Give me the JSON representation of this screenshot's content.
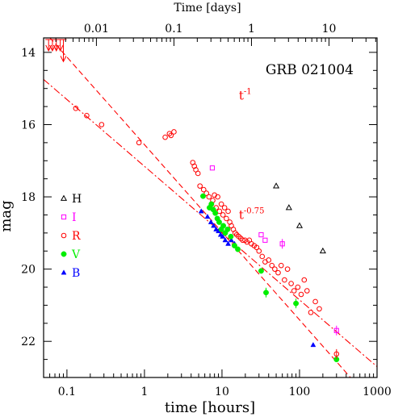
{
  "chart_data": {
    "type": "scatter",
    "title": "GRB 021004",
    "xlabel": "time [hours]",
    "ylabel": "mag",
    "top_xlabel": "Time [days]",
    "xscale": "log",
    "xlim": [
      0.05,
      1000
    ],
    "ylim": [
      13.6,
      23.0
    ],
    "y_inverted": true,
    "top_xscale": "log",
    "top_xlim_days": [
      0.0020833,
      41.667
    ],
    "x_ticks": [
      "0.1",
      "1",
      "10",
      "100",
      "1000"
    ],
    "y_ticks": [
      "14",
      "16",
      "18",
      "20",
      "22"
    ],
    "top_ticks": [
      "0.01",
      "0.1",
      "1",
      "10"
    ],
    "legend_position": "left",
    "legend": [
      {
        "label": "H",
        "marker": "triangle-open",
        "color": "#000000"
      },
      {
        "label": "I",
        "marker": "square-open",
        "color": "#ff00ff"
      },
      {
        "label": "R",
        "marker": "circle-open",
        "color": "#ff0000"
      },
      {
        "label": "V",
        "marker": "circle-filled",
        "color": "#00ee00"
      },
      {
        "label": "B",
        "marker": "triangle-filled",
        "color": "#0000ff"
      }
    ],
    "annotations": [
      {
        "text": "t",
        "exponent": "-1",
        "x": 16.5,
        "y": 15.2,
        "color": "#ff0000"
      },
      {
        "text": "t",
        "exponent": "-0.75",
        "x": 16.5,
        "y": 18.5,
        "color": "#ff0000"
      }
    ],
    "fits": [
      {
        "label": "t^-1",
        "style": "dashed",
        "color": "#ff0000",
        "x": [
          0.05,
          500
        ],
        "y": [
          13.4,
          23.1
        ]
      },
      {
        "label": "t^-0.75",
        "style": "dashdot",
        "color": "#ff0000",
        "x": [
          0.05,
          1000
        ],
        "y": [
          14.75,
          22.7
        ]
      }
    ],
    "upper_limits": {
      "color": "#ff0000",
      "x": [
        0.058,
        0.065,
        0.073,
        0.082,
        0.09
      ],
      "y": [
        13.8,
        13.8,
        13.8,
        13.8,
        14.1
      ]
    },
    "series": [
      {
        "name": "H",
        "marker": "triangle-open",
        "color": "#000000",
        "x": [
          50,
          73,
          100,
          200
        ],
        "y": [
          17.7,
          18.3,
          18.8,
          19.5
        ]
      },
      {
        "name": "I",
        "marker": "square-open",
        "color": "#ff00ff",
        "x": [
          7.5,
          32,
          36,
          60,
          300
        ],
        "y": [
          17.2,
          19.05,
          19.2,
          19.3,
          21.7
        ]
      },
      {
        "name": "R",
        "marker": "circle-open",
        "color": "#ff0000",
        "x": [
          0.13,
          0.18,
          0.28,
          0.85,
          1.85,
          2.1,
          2.2,
          2.4,
          4.2,
          4.4,
          4.6,
          4.9,
          5.2,
          5.8,
          6.3,
          6.8,
          7.3,
          7.6,
          8.0,
          8.4,
          8.8,
          9.3,
          9.8,
          10.3,
          10.8,
          11.4,
          12.0,
          12.6,
          13.2,
          14.0,
          14.8,
          15.5,
          16.5,
          17.5,
          18.5,
          19.8,
          21,
          22.5,
          24,
          26,
          28,
          30,
          33,
          36,
          40,
          44,
          48,
          53,
          58,
          64,
          70,
          78,
          85,
          95,
          105,
          115,
          125,
          140,
          160,
          180,
          300
        ],
        "y": [
          15.55,
          15.75,
          16.0,
          16.5,
          16.35,
          16.25,
          16.3,
          16.2,
          17.05,
          17.15,
          17.25,
          17.35,
          17.7,
          17.8,
          17.9,
          18.0,
          18.2,
          18.1,
          17.95,
          18.3,
          18.0,
          18.4,
          18.2,
          18.5,
          18.3,
          18.6,
          18.4,
          18.7,
          18.8,
          18.9,
          19.0,
          19.05,
          19.1,
          19.15,
          19.2,
          19.2,
          19.25,
          19.2,
          19.3,
          19.35,
          19.4,
          19.5,
          19.65,
          19.8,
          19.75,
          19.9,
          20.0,
          20.1,
          19.9,
          20.3,
          20.0,
          20.4,
          20.6,
          20.5,
          20.7,
          20.3,
          20.6,
          21.2,
          20.9,
          21.1,
          22.35
        ]
      },
      {
        "name": "V",
        "marker": "circle-filled",
        "color": "#00ee00",
        "x": [
          5.7,
          6.9,
          7.3,
          7.7,
          8.2,
          8.7,
          9.2,
          9.8,
          10.4,
          11.0,
          11.8,
          13.0,
          14.5,
          16.0,
          32,
          37,
          90,
          300
        ],
        "y": [
          17.98,
          18.3,
          18.2,
          18.35,
          18.45,
          18.6,
          18.7,
          18.9,
          18.8,
          19.0,
          18.9,
          19.1,
          19.35,
          19.45,
          20.05,
          20.65,
          20.95,
          22.5
        ]
      },
      {
        "name": "B",
        "marker": "triangle-filled",
        "color": "#0000ff",
        "x": [
          5.4,
          6.5,
          7.2,
          7.8,
          8.4,
          9.0,
          9.6,
          10.2,
          11.0,
          12.0,
          13.2,
          14.5,
          150
        ],
        "y": [
          18.4,
          18.55,
          18.7,
          18.8,
          18.9,
          18.95,
          19.05,
          19.1,
          19.2,
          19.3,
          19.2,
          19.3,
          22.1
        ]
      }
    ]
  }
}
